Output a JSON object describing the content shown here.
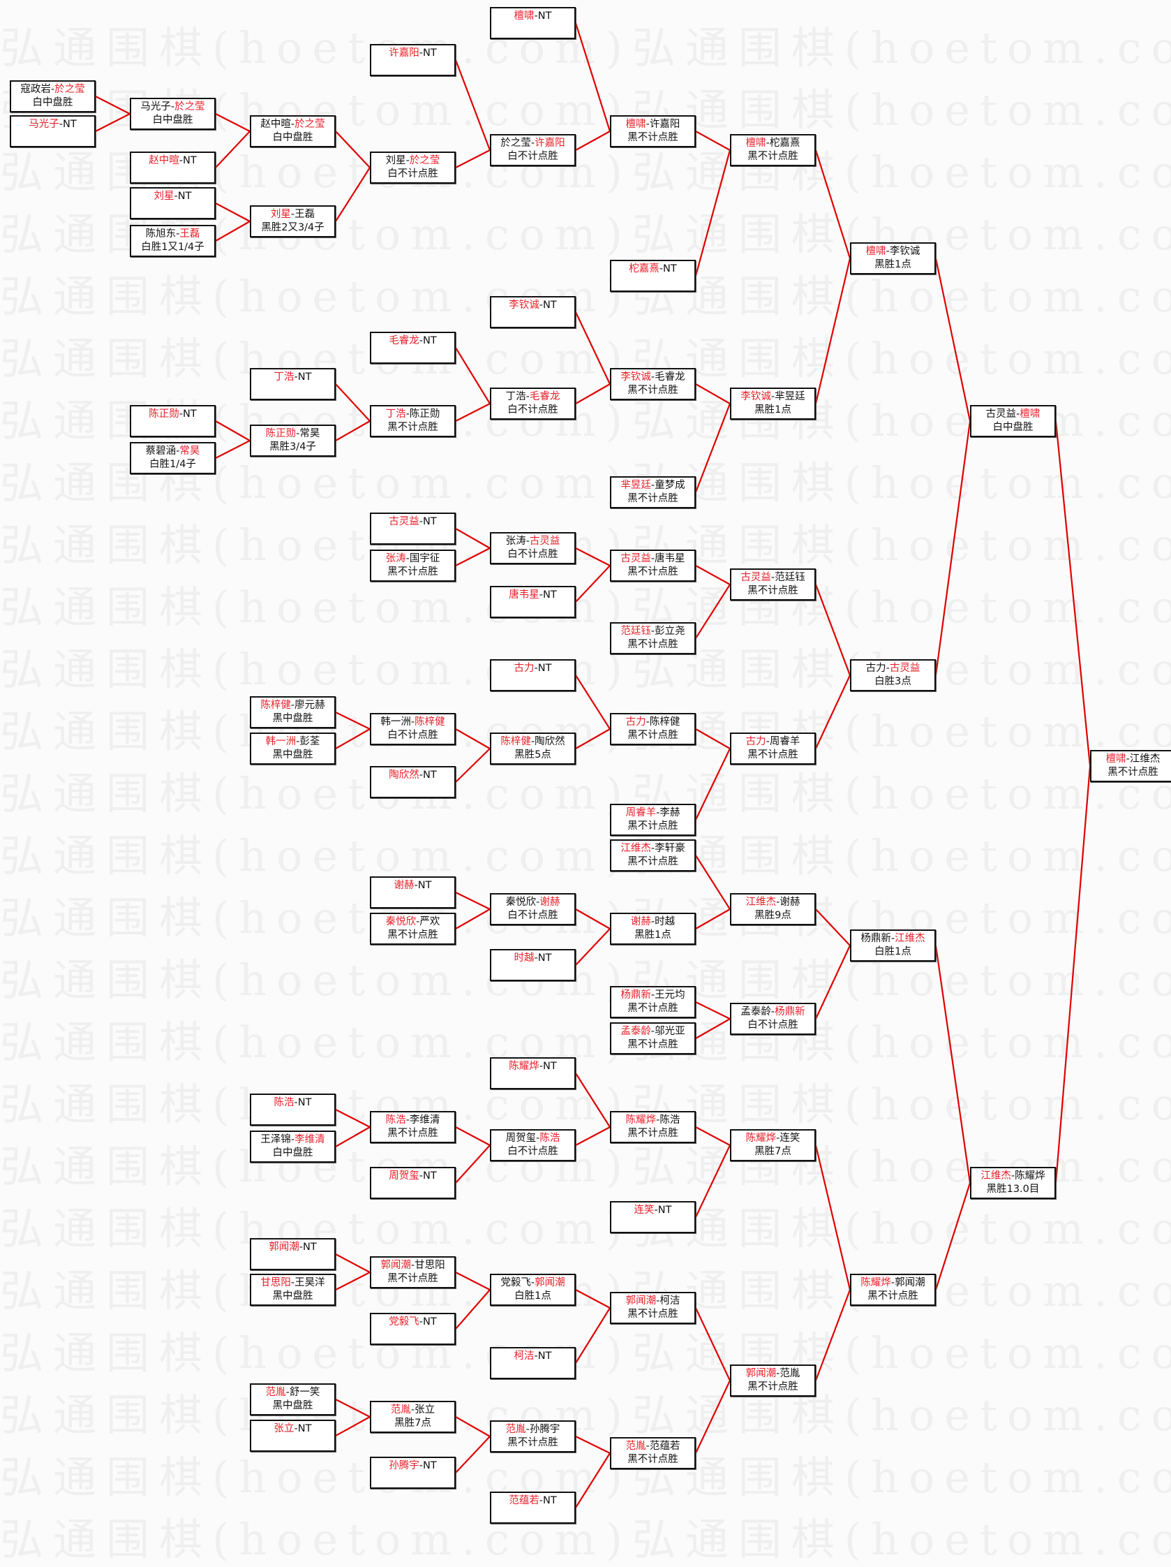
{
  "watermark": "弘通围棋(hoetom.com)",
  "colors": {
    "winner": "#e8202a",
    "connector": "#e00000",
    "border": "#111111"
  },
  "separator": "-",
  "rounds": [
    [
      {
        "p1": "寇政岩",
        "p2": "於之莹",
        "winner": 2,
        "result": "白中盘胜"
      },
      {
        "p1": "马光子",
        "p2": "NT",
        "winner": 1,
        "result": ""
      }
    ],
    [
      {
        "p1": "马光子",
        "p2": "於之莹",
        "winner": 2,
        "result": "白中盘胜",
        "children": [
          0,
          1
        ]
      },
      {
        "p1": "赵中暄",
        "p2": "NT",
        "winner": 1,
        "result": ""
      },
      {
        "p1": "刘星",
        "p2": "NT",
        "winner": 1,
        "result": ""
      },
      {
        "p1": "陈旭东",
        "p2": "王磊",
        "winner": 2,
        "result": "白胜1又1/4子"
      },
      {
        "p1": "陈正勋",
        "p2": "NT",
        "winner": 1,
        "result": ""
      },
      {
        "p1": "蔡碧涵",
        "p2": "常昊",
        "winner": 2,
        "result": "白胜1/4子"
      }
    ],
    [
      {
        "p1": "赵中暄",
        "p2": "於之莹",
        "winner": 2,
        "result": "白中盘胜",
        "children": [
          0,
          1
        ]
      },
      {
        "p1": "刘星",
        "p2": "王磊",
        "winner": 1,
        "result": "黑胜2又3/4子",
        "children": [
          2,
          3
        ]
      },
      {
        "p1": "丁浩",
        "p2": "NT",
        "winner": 1,
        "result": ""
      },
      {
        "p1": "陈正勋",
        "p2": "常昊",
        "winner": 1,
        "result": "黑胜3/4子",
        "children": [
          4,
          5
        ]
      },
      {
        "p1": "陈梓健",
        "p2": "廖元赫",
        "winner": 1,
        "result": "黑中盘胜"
      },
      {
        "p1": "韩一洲",
        "p2": "彭荃",
        "winner": 1,
        "result": "黑中盘胜"
      },
      {
        "p1": "陈浩",
        "p2": "NT",
        "winner": 1,
        "result": ""
      },
      {
        "p1": "王泽锦",
        "p2": "李维清",
        "winner": 2,
        "result": "白中盘胜"
      },
      {
        "p1": "郭闻潮",
        "p2": "NT",
        "winner": 1,
        "result": ""
      },
      {
        "p1": "甘思阳",
        "p2": "王昊洋",
        "winner": 1,
        "result": "黑中盘胜"
      },
      {
        "p1": "范胤",
        "p2": "舒一笑",
        "winner": 1,
        "result": "黑中盘胜"
      },
      {
        "p1": "张立",
        "p2": "NT",
        "winner": 1,
        "result": ""
      }
    ],
    [
      {
        "p1": "许嘉阳",
        "p2": "NT",
        "winner": 1,
        "result": ""
      },
      {
        "p1": "刘星",
        "p2": "於之莹",
        "winner": 2,
        "result": "白不计点胜",
        "children": [
          0,
          1
        ]
      },
      {
        "p1": "毛睿龙",
        "p2": "NT",
        "winner": 1,
        "result": ""
      },
      {
        "p1": "丁浩",
        "p2": "陈正勋",
        "winner": 1,
        "result": "黑不计点胜",
        "children": [
          2,
          3
        ]
      },
      {
        "p1": "古灵益",
        "p2": "NT",
        "winner": 1,
        "result": ""
      },
      {
        "p1": "张涛",
        "p2": "国宇征",
        "winner": 1,
        "result": "黑不计点胜"
      },
      {
        "p1": "韩一洲",
        "p2": "陈梓健",
        "winner": 2,
        "result": "白不计点胜",
        "children": [
          4,
          5
        ]
      },
      {
        "p1": "陶欣然",
        "p2": "NT",
        "winner": 1,
        "result": ""
      },
      {
        "p1": "谢赫",
        "p2": "NT",
        "winner": 1,
        "result": ""
      },
      {
        "p1": "秦悦欣",
        "p2": "严欢",
        "winner": 1,
        "result": "黑不计点胜"
      },
      {
        "p1": "陈浩",
        "p2": "李维清",
        "winner": 1,
        "result": "黑不计点胜",
        "children": [
          6,
          7
        ]
      },
      {
        "p1": "周贺玺",
        "p2": "NT",
        "winner": 1,
        "result": ""
      },
      {
        "p1": "郭闻潮",
        "p2": "甘思阳",
        "winner": 1,
        "result": "黑不计点胜",
        "children": [
          8,
          9
        ]
      },
      {
        "p1": "党毅飞",
        "p2": "NT",
        "winner": 1,
        "result": ""
      },
      {
        "p1": "范胤",
        "p2": "张立",
        "winner": 1,
        "result": "黑胜7点",
        "children": [
          10,
          11
        ]
      },
      {
        "p1": "孙腾宇",
        "p2": "NT",
        "winner": 1,
        "result": ""
      }
    ],
    [
      {
        "p1": "檀啸",
        "p2": "NT",
        "winner": 1,
        "result": ""
      },
      {
        "p1": "於之莹",
        "p2": "许嘉阳",
        "winner": 2,
        "result": "白不计点胜",
        "children": [
          0,
          1
        ]
      },
      {
        "p1": "李钦诚",
        "p2": "NT",
        "winner": 1,
        "result": ""
      },
      {
        "p1": "丁浩",
        "p2": "毛睿龙",
        "winner": 2,
        "result": "白不计点胜",
        "children": [
          2,
          3
        ]
      },
      {
        "p1": "张涛",
        "p2": "古灵益",
        "winner": 2,
        "result": "白不计点胜",
        "children": [
          4,
          5
        ]
      },
      {
        "p1": "唐韦星",
        "p2": "NT",
        "winner": 1,
        "result": ""
      },
      {
        "p1": "古力",
        "p2": "NT",
        "winner": 1,
        "result": ""
      },
      {
        "p1": "陈梓健",
        "p2": "陶欣然",
        "winner": 1,
        "result": "黑胜5点",
        "children": [
          6,
          7
        ]
      },
      {
        "p1": "秦悦欣",
        "p2": "谢赫",
        "winner": 2,
        "result": "白不计点胜",
        "children": [
          8,
          9
        ]
      },
      {
        "p1": "时越",
        "p2": "NT",
        "winner": 1,
        "result": ""
      },
      {
        "p1": "陈耀烨",
        "p2": "NT",
        "winner": 1,
        "result": ""
      },
      {
        "p1": "周贺玺",
        "p2": "陈浩",
        "winner": 2,
        "result": "白不计点胜",
        "children": [
          10,
          11
        ]
      },
      {
        "p1": "党毅飞",
        "p2": "郭闻潮",
        "winner": 2,
        "result": "白胜1点",
        "children": [
          12,
          13
        ]
      },
      {
        "p1": "柯洁",
        "p2": "NT",
        "winner": 1,
        "result": ""
      },
      {
        "p1": "范胤",
        "p2": "孙腾宇",
        "winner": 1,
        "result": "黑不计点胜",
        "children": [
          14,
          15
        ]
      },
      {
        "p1": "范蕴若",
        "p2": "NT",
        "winner": 1,
        "result": ""
      }
    ],
    [
      {
        "p1": "檀啸",
        "p2": "许嘉阳",
        "winner": 1,
        "result": "黑不计点胜",
        "children": [
          0,
          1
        ]
      },
      {
        "p1": "柁嘉熹",
        "p2": "NT",
        "winner": 1,
        "result": ""
      },
      {
        "p1": "李钦诚",
        "p2": "毛睿龙",
        "winner": 1,
        "result": "黑不计点胜",
        "children": [
          2,
          3
        ]
      },
      {
        "p1": "芈昱廷",
        "p2": "童梦成",
        "winner": 1,
        "result": "黑不计点胜"
      },
      {
        "p1": "古灵益",
        "p2": "唐韦星",
        "winner": 1,
        "result": "黑不计点胜",
        "children": [
          4,
          5
        ]
      },
      {
        "p1": "范廷钰",
        "p2": "彭立尧",
        "winner": 1,
        "result": "黑不计点胜"
      },
      {
        "p1": "古力",
        "p2": "陈梓健",
        "winner": 1,
        "result": "黑不计点胜",
        "children": [
          6,
          7
        ]
      },
      {
        "p1": "周睿羊",
        "p2": "李赫",
        "winner": 1,
        "result": "黑不计点胜"
      },
      {
        "p1": "江维杰",
        "p2": "李轩豪",
        "winner": 1,
        "result": "黑不计点胜"
      },
      {
        "p1": "谢赫",
        "p2": "时越",
        "winner": 1,
        "result": "黑胜1点",
        "children": [
          8,
          9
        ]
      },
      {
        "p1": "杨鼎新",
        "p2": "王元均",
        "winner": 1,
        "result": "黑不计点胜"
      },
      {
        "p1": "孟泰龄",
        "p2": "邬光亚",
        "winner": 1,
        "result": "黑不计点胜"
      },
      {
        "p1": "陈耀烨",
        "p2": "陈浩",
        "winner": 1,
        "result": "黑不计点胜",
        "children": [
          10,
          11
        ]
      },
      {
        "p1": "连笑",
        "p2": "NT",
        "winner": 1,
        "result": ""
      },
      {
        "p1": "郭闻潮",
        "p2": "柯洁",
        "winner": 1,
        "result": "黑不计点胜",
        "children": [
          12,
          13
        ]
      },
      {
        "p1": "范胤",
        "p2": "范蕴若",
        "winner": 1,
        "result": "黑不计点胜",
        "children": [
          14,
          15
        ]
      }
    ],
    [
      {
        "p1": "檀啸",
        "p2": "柁嘉熹",
        "winner": 1,
        "result": "黑不计点胜",
        "children": [
          0,
          1
        ]
      },
      {
        "p1": "李钦诚",
        "p2": "芈昱廷",
        "winner": 1,
        "result": "黑胜1点",
        "children": [
          2,
          3
        ]
      },
      {
        "p1": "古灵益",
        "p2": "范廷钰",
        "winner": 1,
        "result": "黑不计点胜",
        "children": [
          4,
          5
        ]
      },
      {
        "p1": "古力",
        "p2": "周睿羊",
        "winner": 1,
        "result": "黑不计点胜",
        "children": [
          6,
          7
        ]
      },
      {
        "p1": "江维杰",
        "p2": "谢赫",
        "winner": 1,
        "result": "黑胜9点",
        "children": [
          8,
          9
        ]
      },
      {
        "p1": "孟泰龄",
        "p2": "杨鼎新",
        "winner": 2,
        "result": "白不计点胜",
        "children": [
          10,
          11
        ]
      },
      {
        "p1": "陈耀烨",
        "p2": "连笑",
        "winner": 1,
        "result": "黑胜7点",
        "children": [
          12,
          13
        ]
      },
      {
        "p1": "郭闻潮",
        "p2": "范胤",
        "winner": 1,
        "result": "黑不计点胜",
        "children": [
          14,
          15
        ]
      }
    ],
    [
      {
        "p1": "檀啸",
        "p2": "李钦诚",
        "winner": 1,
        "result": "黑胜1点",
        "children": [
          0,
          1
        ]
      },
      {
        "p1": "古力",
        "p2": "古灵益",
        "winner": 2,
        "result": "白胜3点",
        "children": [
          2,
          3
        ]
      },
      {
        "p1": "杨鼎新",
        "p2": "江维杰",
        "winner": 2,
        "result": "白胜1点",
        "children": [
          4,
          5
        ]
      },
      {
        "p1": "陈耀烨",
        "p2": "郭闻潮",
        "winner": 1,
        "result": "黑不计点胜",
        "children": [
          6,
          7
        ]
      }
    ],
    [
      {
        "p1": "古灵益",
        "p2": "檀啸",
        "winner": 2,
        "result": "白中盘胜",
        "children": [
          0,
          1
        ]
      },
      {
        "p1": "江维杰",
        "p2": "陈耀烨",
        "winner": 1,
        "result": "黑胜13.0目",
        "children": [
          2,
          3
        ]
      }
    ],
    [
      {
        "p1": "檀啸",
        "p2": "江维杰",
        "winner": 1,
        "result": "黑不计点胜",
        "children": [
          0,
          1
        ]
      }
    ]
  ]
}
